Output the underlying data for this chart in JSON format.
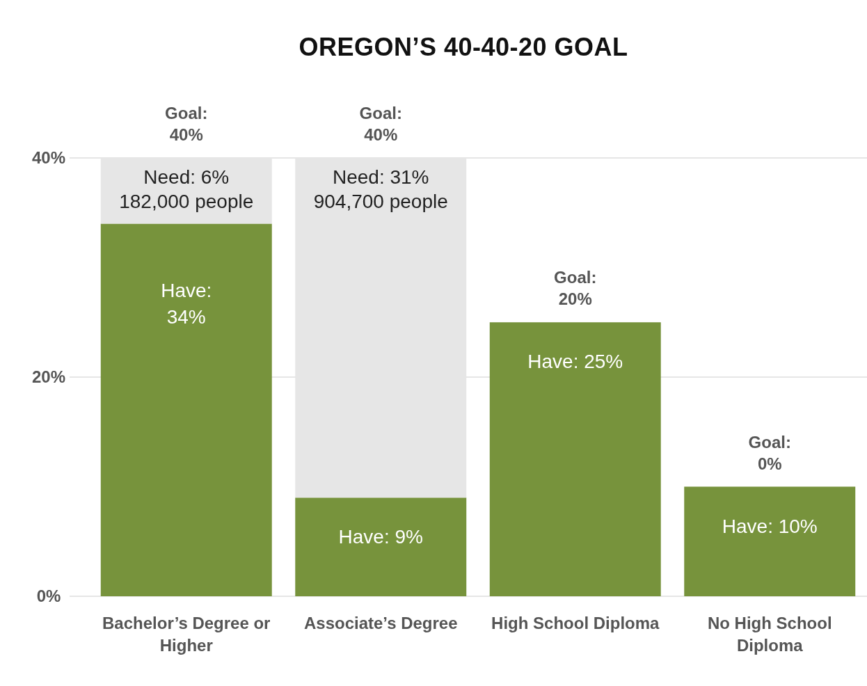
{
  "chart_data": {
    "type": "bar",
    "title": "OREGON’S 40-40-20 GOAL",
    "stacked": true,
    "categories": [
      "Bachelor’s Degree or Higher",
      "Associate’s Degree",
      "High School Diploma",
      "No High School Diploma"
    ],
    "series": [
      {
        "color": "#77933c",
        "values": [
          34,
          9,
          25,
          10
        ],
        "value_labels": [
          "Have:\n34%",
          "Have: 9%",
          "Have: 25%",
          "Have: 10%"
        ]
      },
      {
        "color": "#e6e6e6",
        "values": [
          6,
          31,
          null,
          null
        ],
        "value_labels": [
          "Need: 6%\n182,000 people",
          "Need: 31%\n904,700 people",
          null,
          null
        ]
      }
    ],
    "annotations": [
      {
        "text": "Goal:\n40%",
        "x": "Bachelor’s Degree or Higher",
        "y": 40
      },
      {
        "text": "Goal:\n40%",
        "x": "Associate’s Degree",
        "y": 40
      },
      {
        "text": "Goal:\n20%",
        "x": "High School Diploma",
        "y": 25
      },
      {
        "text": "Goal:\n0%",
        "x": "No High School Diploma",
        "y": 10
      }
    ],
    "ylim": [
      0,
      40
    ],
    "yticks": [
      {
        "value": 0,
        "label": "0%"
      },
      {
        "value": 20,
        "label": "20%"
      },
      {
        "value": 40,
        "label": "40%"
      }
    ],
    "grid": "y"
  }
}
